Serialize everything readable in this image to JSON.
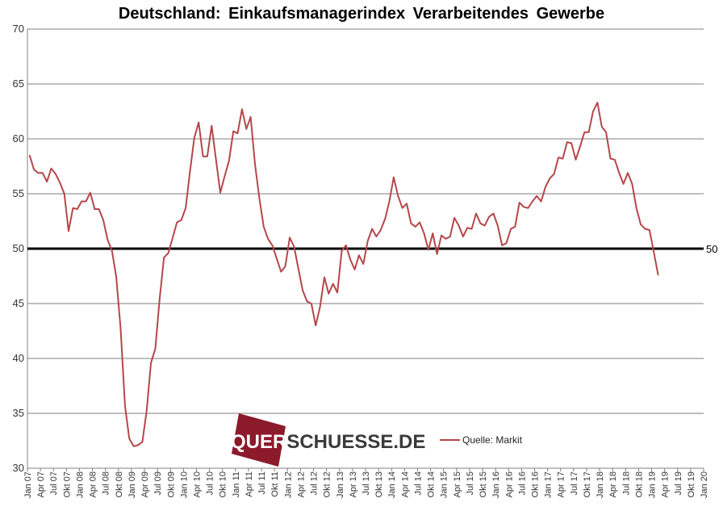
{
  "chart_data": {
    "type": "line",
    "title": "Deutschland: Einkaufsmanagerindex  Verarbeitendes  Gewerbe",
    "xlabel": "",
    "ylabel": "",
    "ylim": [
      30,
      70
    ],
    "yticks": [
      30,
      35,
      40,
      45,
      50,
      55,
      60,
      65,
      70
    ],
    "grid": true,
    "legend_position": "bottom-center",
    "source_note": "Quelle: Markit",
    "reference_line": {
      "value": 50,
      "label": "50",
      "color": "#000000"
    },
    "x_tick_labels": [
      "Jan 07",
      "Apr 07",
      "Jul 07",
      "Okt 07",
      "Jan 08",
      "Apr 08",
      "Jul 08",
      "Okt 08",
      "Jan 09",
      "Apr 09",
      "Jul 09",
      "Okt 09",
      "Jan 10",
      "Apr 10",
      "Jul 10",
      "Okt 10",
      "Jan 11",
      "Apr 11",
      "Jul 11",
      "Okt 11",
      "Jan 12",
      "Apr 12",
      "Jul 12",
      "Okt 12",
      "Jan 13",
      "Apr 13",
      "Jul 13",
      "Okt 13",
      "Jan 14",
      "Apr 14",
      "Jul 14",
      "Okt 14",
      "Jan 15",
      "Apr 15",
      "Jul 15",
      "Okt 15",
      "Jan 16",
      "Apr 16",
      "Jul 16",
      "Okt 16",
      "Jan 17",
      "Apr 17",
      "Jul 17",
      "Okt 17",
      "Jan 18",
      "Apr 18",
      "Jul 18",
      "Okt 18",
      "Jan 19",
      "Apr 19",
      "Jul 19",
      "Okt 19",
      "Jan 20"
    ],
    "x_start": "Jan 07",
    "series": [
      {
        "name": "",
        "color": "#b5474a",
        "values": [
          58.5,
          57.2,
          56.9,
          56.9,
          56.1,
          57.3,
          56.8,
          56.0,
          55.0,
          51.6,
          53.7,
          53.6,
          54.3,
          54.3,
          55.1,
          53.6,
          53.6,
          52.6,
          50.8,
          49.8,
          47.4,
          42.7,
          35.7,
          32.7,
          32.0,
          32.1,
          32.4,
          35.2,
          39.6,
          40.9,
          45.4,
          49.2,
          49.6,
          51.0,
          52.4,
          52.6,
          53.7,
          57.0,
          60.1,
          61.5,
          58.4,
          58.4,
          61.2,
          58.1,
          55.1,
          56.6,
          58.0,
          60.7,
          60.5,
          62.7,
          60.9,
          62.0,
          57.7,
          54.6,
          52.0,
          50.9,
          50.3,
          49.1,
          47.9,
          48.4,
          51.0,
          50.2,
          48.2,
          46.2,
          45.2,
          45.0,
          43.0,
          44.7,
          47.4,
          45.9,
          46.8,
          46.0,
          49.8,
          50.3,
          49.0,
          48.1,
          49.4,
          48.6,
          50.7,
          51.8,
          51.1,
          51.7,
          52.7,
          54.3,
          56.5,
          54.8,
          53.7,
          54.1,
          52.3,
          52.0,
          52.4,
          51.4,
          49.9,
          51.4,
          49.5,
          51.2,
          50.9,
          51.1,
          52.8,
          52.1,
          51.1,
          51.9,
          51.8,
          53.2,
          52.3,
          52.1,
          52.9,
          53.2,
          52.1,
          50.3,
          50.5,
          51.8,
          52.0,
          54.2,
          53.8,
          53.7,
          54.3,
          54.8,
          54.3,
          55.6,
          56.4,
          56.8,
          58.3,
          58.2,
          59.7,
          59.6,
          58.1,
          59.3,
          60.6,
          60.6,
          62.5,
          63.3,
          61.1,
          60.6,
          58.2,
          58.1,
          56.9,
          55.9,
          56.9,
          55.9,
          53.7,
          52.2,
          51.8,
          51.7,
          49.7,
          47.6
        ]
      }
    ]
  },
  "watermark": {
    "text": "QUERSCHUESSE.DE",
    "colors": {
      "dark": "#8b1a2b",
      "letters": "#3a3a3a"
    }
  },
  "colors": {
    "grid": "#7f7f7f",
    "axis": "#808080",
    "series": "#b5474a"
  }
}
